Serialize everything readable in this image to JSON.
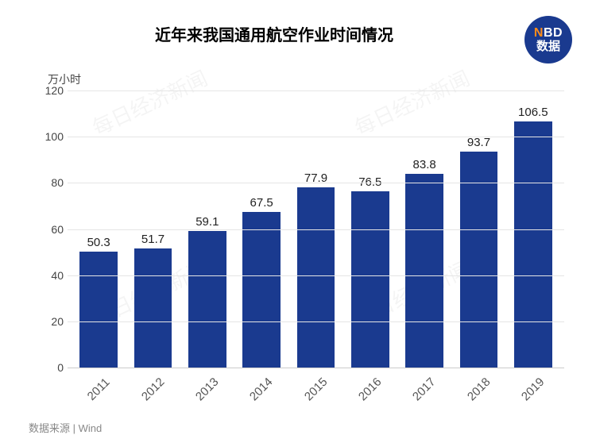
{
  "title": {
    "text": "近年来我国通用航空作业时间情况",
    "fontsize": 20
  },
  "logo": {
    "line1_n": "N",
    "line1_bd": "BD",
    "line2": "数据"
  },
  "y_axis": {
    "unit": "万小时",
    "unit_fontsize": 14,
    "min": 0,
    "max": 120,
    "ticks": [
      0,
      20,
      40,
      60,
      80,
      100,
      120
    ],
    "tick_fontsize": 14,
    "grid_color": "#e5e5e5"
  },
  "chart": {
    "type": "bar",
    "bar_color": "#1a3a8f",
    "bar_width_ratio": 0.7,
    "label_fontsize": 15,
    "label_color": "#222222",
    "background_color": "#ffffff",
    "categories": [
      "2011",
      "2012",
      "2013",
      "2014",
      "2015",
      "2016",
      "2017",
      "2018",
      "2019"
    ],
    "values": [
      50.3,
      51.7,
      59.1,
      67.5,
      77.9,
      76.5,
      83.8,
      93.7,
      106.5
    ],
    "x_label_fontsize": 15,
    "x_label_rotation_deg": -45
  },
  "source": {
    "text": "数据来源 | Wind",
    "fontsize": 13,
    "color": "#888888"
  },
  "watermark": {
    "text": "每日经济新闻"
  }
}
